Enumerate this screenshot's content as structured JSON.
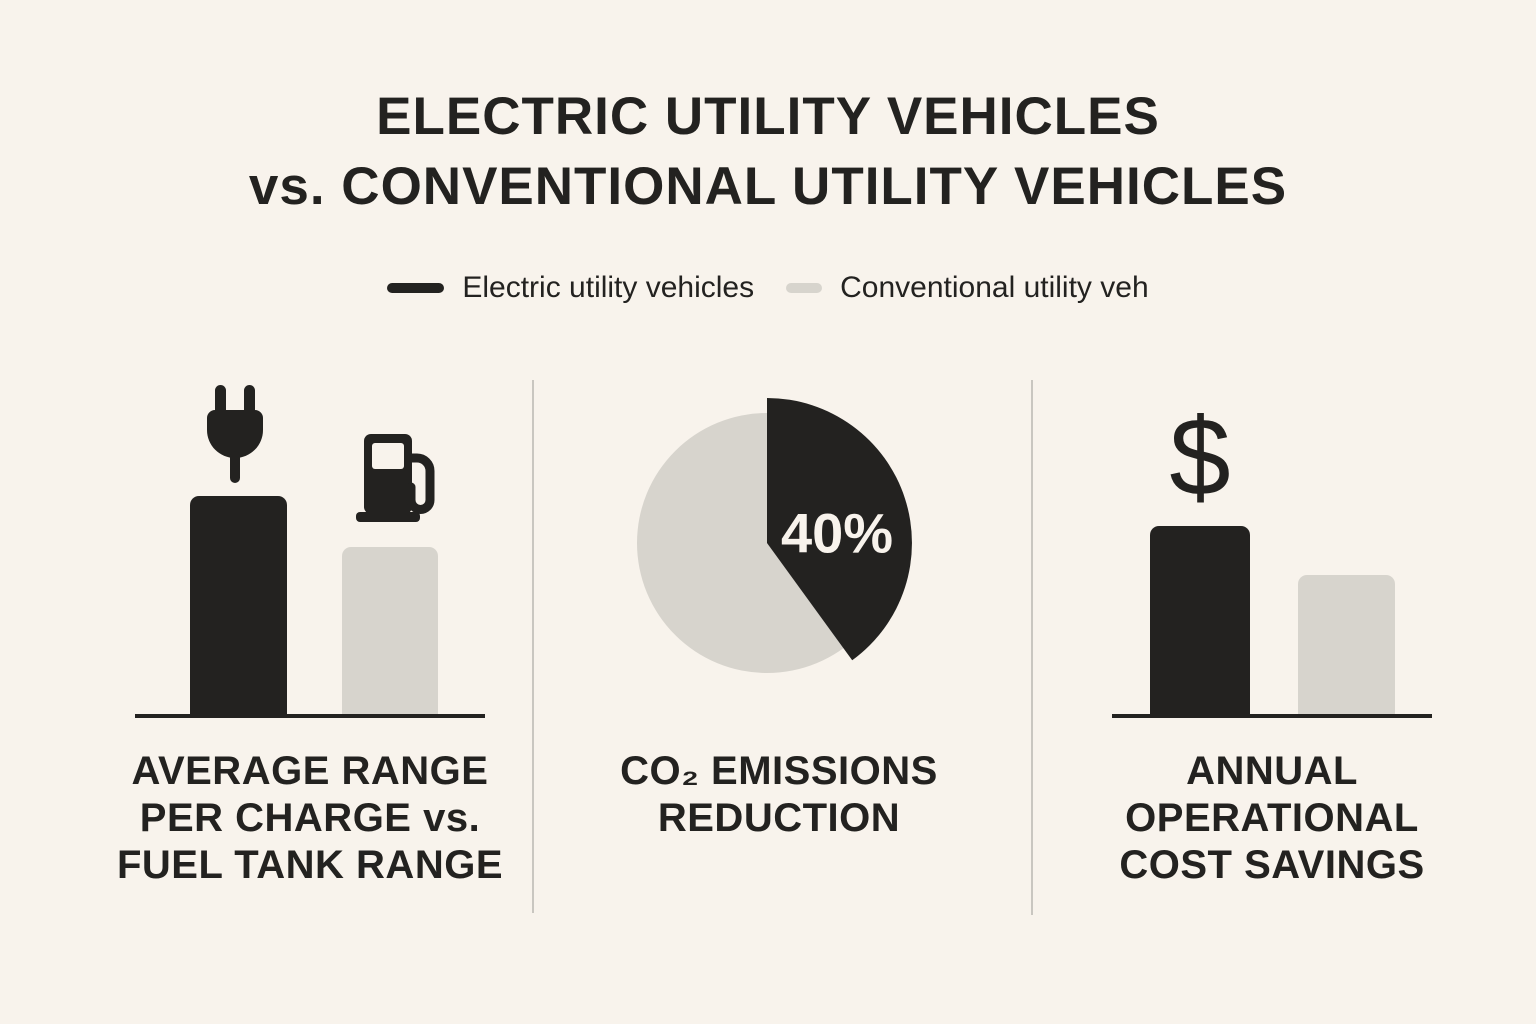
{
  "theme": {
    "bg": "#f8f3ec",
    "ink": "#232220",
    "gray": "#d7d4cd",
    "divider": "#c9c6c0",
    "label-light": "#f8f3ec"
  },
  "title": {
    "line1": "ELECTRIC UTILITY VEHICLES",
    "line2": "vs. CONVENTIONAL UTILITY VEHICLES"
  },
  "legend": {
    "items": [
      {
        "label": "Electric utility vehicles",
        "color": "#232220"
      },
      {
        "label": "Conventional utility veh",
        "color": "#d7d4cd"
      }
    ]
  },
  "panels": [
    {
      "id": "range",
      "icons": [
        "plug-icon",
        "fuel-pump-icon"
      ],
      "caption_lines": [
        "AVERAGE RANGE",
        "PER CHARGE vs.",
        "FUEL TANK RANGE"
      ]
    },
    {
      "id": "co2",
      "caption_lines": [
        "CO₂ EMISSIONS",
        "REDUCTION"
      ]
    },
    {
      "id": "cost",
      "icons": [
        "dollar-icon"
      ],
      "caption_lines": [
        "ANNUAL",
        "OPERATIONAL",
        "COST SAVINGS"
      ]
    }
  ],
  "chart_data": [
    {
      "type": "bar",
      "title": "Average range per charge vs. fuel tank range",
      "categories": [
        "Electric utility vehicles",
        "Conventional utility vehicles"
      ],
      "values_relative": [
        1.0,
        0.77
      ],
      "value_labels_shown": false,
      "legend_position": "top",
      "colors": [
        "#232220",
        "#d7d4cd"
      ]
    },
    {
      "type": "pie",
      "title": "CO₂ emissions reduction",
      "slices": [
        {
          "label": "Electric utility vehicles",
          "value_pct": 40,
          "color": "#232220"
        },
        {
          "label": "Conventional utility vehicles",
          "value_pct": 60,
          "color": "#d7d4cd"
        }
      ],
      "annotation": "40%",
      "start_angle_deg": 0,
      "direction": "clockwise",
      "dark_slice_exploded_radius": true
    },
    {
      "type": "bar",
      "title": "Annual operational cost savings",
      "categories": [
        "Electric utility vehicles",
        "Conventional utility vehicles"
      ],
      "values_relative": [
        1.0,
        0.74
      ],
      "value_labels_shown": false,
      "colors": [
        "#232220",
        "#d7d4cd"
      ]
    }
  ]
}
